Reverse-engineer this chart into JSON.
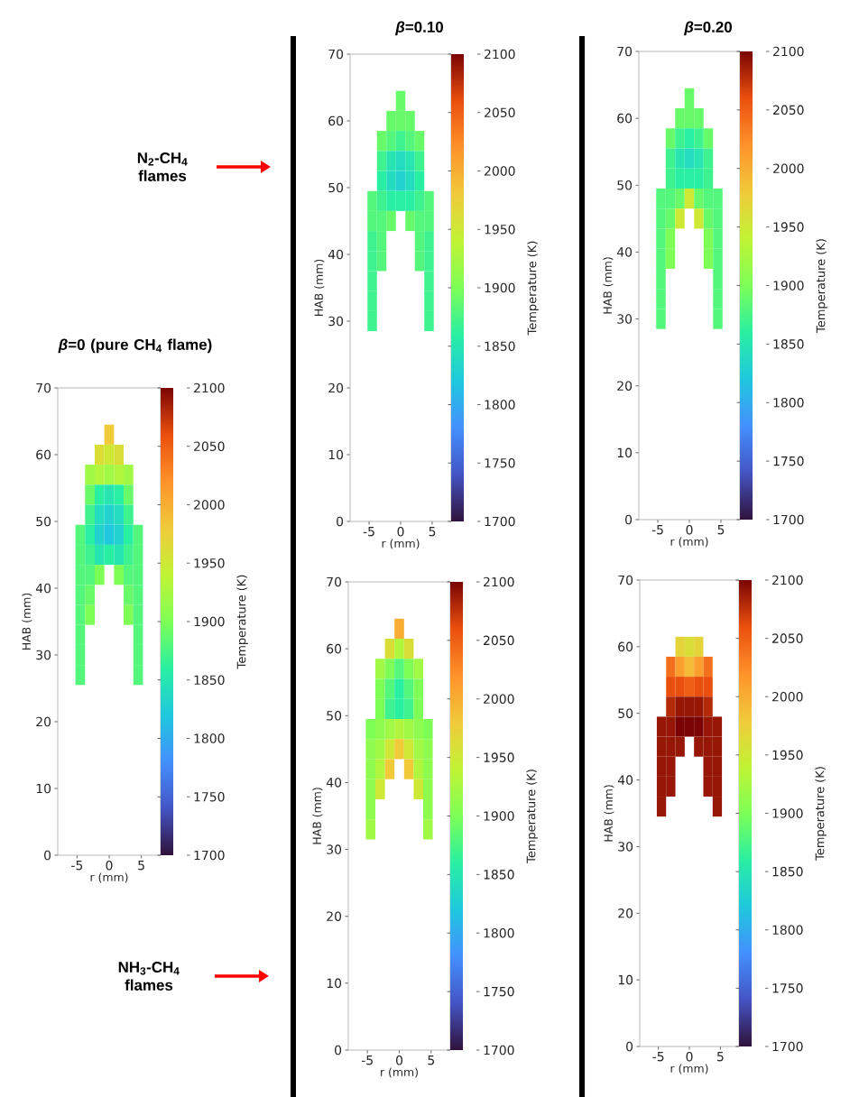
{
  "chart_data": [
    {
      "type": "heatmap",
      "title": "*β*=0 (pure CH$_{4}$ flame)",
      "xlabel": "r (mm)",
      "ylabel": "HAB (mm)",
      "clabel": "Temperature (K)",
      "x": [
        -4.5,
        -3,
        -1.5,
        0,
        1.5,
        3,
        4.5
      ],
      "y": [
        63,
        60,
        57,
        54,
        51,
        48,
        45,
        42,
        39,
        36,
        33,
        30,
        27
      ],
      "cells": [
        [
          null,
          null,
          null,
          1980,
          null,
          null,
          null
        ],
        [
          null,
          null,
          1960,
          1950,
          1960,
          null,
          null
        ],
        [
          null,
          1920,
          1930,
          1920,
          1930,
          1920,
          null
        ],
        [
          null,
          1890,
          1860,
          1850,
          1860,
          1890,
          null
        ],
        [
          null,
          1870,
          1840,
          1830,
          1840,
          1870,
          null
        ],
        [
          1880,
          1860,
          1830,
          1820,
          1830,
          1860,
          1880
        ],
        [
          1880,
          1870,
          1850,
          1860,
          1850,
          1870,
          1880
        ],
        [
          1880,
          1880,
          1900,
          null,
          1900,
          1880,
          1880
        ],
        [
          1880,
          1890,
          null,
          null,
          null,
          1890,
          1880
        ],
        [
          1880,
          1900,
          null,
          null,
          null,
          1900,
          1880
        ],
        [
          1880,
          null,
          null,
          null,
          null,
          null,
          1880
        ],
        [
          1880,
          null,
          null,
          null,
          null,
          null,
          1880
        ],
        [
          1880,
          null,
          null,
          null,
          null,
          null,
          1880
        ]
      ],
      "xlim": [
        -8,
        8
      ],
      "ylim": [
        0,
        70
      ],
      "xticks": [
        -5,
        0,
        5
      ],
      "yticks": [
        0,
        10,
        20,
        30,
        40,
        50,
        60,
        70
      ],
      "clim": [
        1700,
        2100
      ],
      "cticks": [
        1700,
        1750,
        1800,
        1850,
        1900,
        1950,
        2000,
        2050,
        2100
      ]
    },
    {
      "type": "heatmap",
      "title": "*β*=0.10",
      "xlabel": "r (mm)",
      "ylabel": "HAB (mm)",
      "clabel": "Temperature (K)",
      "annotations": [
        "N$_{2}$-CH$_{4}$ flames"
      ],
      "x": [
        -4.5,
        -3,
        -1.5,
        0,
        1.5,
        3,
        4.5
      ],
      "y": [
        63,
        60,
        57,
        54,
        51,
        48,
        45,
        42,
        39,
        36,
        33,
        30
      ],
      "cells": [
        [
          null,
          null,
          null,
          1890,
          null,
          null,
          null
        ],
        [
          null,
          null,
          1890,
          1890,
          1890,
          null,
          null
        ],
        [
          null,
          1890,
          1880,
          1870,
          1880,
          1890,
          null
        ],
        [
          null,
          1870,
          1850,
          1840,
          1850,
          1870,
          null
        ],
        [
          null,
          1860,
          1840,
          1830,
          1840,
          1860,
          null
        ],
        [
          1880,
          1870,
          1860,
          1860,
          1860,
          1870,
          1880
        ],
        [
          1880,
          1880,
          1890,
          null,
          1890,
          1880,
          1880
        ],
        [
          1870,
          1880,
          null,
          null,
          null,
          1880,
          1870
        ],
        [
          1870,
          1880,
          null,
          null,
          null,
          1880,
          1870
        ],
        [
          1870,
          null,
          null,
          null,
          null,
          null,
          1870
        ],
        [
          1870,
          null,
          null,
          null,
          null,
          null,
          1870
        ],
        [
          1870,
          null,
          null,
          null,
          null,
          null,
          1870
        ]
      ],
      "xlim": [
        -8,
        8
      ],
      "ylim": [
        0,
        70
      ],
      "xticks": [
        -5,
        0,
        5
      ],
      "yticks": [
        0,
        10,
        20,
        30,
        40,
        50,
        60,
        70
      ],
      "clim": [
        1700,
        2100
      ],
      "cticks": [
        1700,
        1750,
        1800,
        1850,
        1900,
        1950,
        2000,
        2050,
        2100
      ]
    },
    {
      "type": "heatmap",
      "title": "*β*=0.20",
      "xlabel": "r (mm)",
      "ylabel": "HAB (mm)",
      "clabel": "Temperature (K)",
      "x": [
        -4.5,
        -3,
        -1.5,
        0,
        1.5,
        3,
        4.5
      ],
      "y": [
        63,
        60,
        57,
        54,
        51,
        48,
        45,
        42,
        39,
        36,
        33,
        30
      ],
      "cells": [
        [
          null,
          null,
          null,
          1890,
          null,
          null,
          null
        ],
        [
          null,
          null,
          1890,
          1890,
          1890,
          null,
          null
        ],
        [
          null,
          1890,
          1870,
          1860,
          1870,
          1890,
          null
        ],
        [
          null,
          1870,
          1850,
          1840,
          1850,
          1870,
          null
        ],
        [
          null,
          1870,
          1860,
          1860,
          1860,
          1870,
          null
        ],
        [
          1880,
          1880,
          1890,
          1950,
          1890,
          1880,
          1880
        ],
        [
          1880,
          1890,
          1950,
          null,
          1950,
          1890,
          1880
        ],
        [
          1880,
          1900,
          null,
          null,
          null,
          1900,
          1880
        ],
        [
          1880,
          1900,
          null,
          null,
          null,
          1900,
          1880
        ],
        [
          1880,
          null,
          null,
          null,
          null,
          null,
          1880
        ],
        [
          1880,
          null,
          null,
          null,
          null,
          null,
          1880
        ],
        [
          1880,
          null,
          null,
          null,
          null,
          null,
          1880
        ]
      ],
      "xlim": [
        -8,
        8
      ],
      "ylim": [
        0,
        70
      ],
      "xticks": [
        -5,
        0,
        5
      ],
      "yticks": [
        0,
        10,
        20,
        30,
        40,
        50,
        60,
        70
      ],
      "clim": [
        1700,
        2100
      ],
      "cticks": [
        1700,
        1750,
        1800,
        1850,
        1900,
        1950,
        2000,
        2050,
        2100
      ]
    },
    {
      "type": "heatmap",
      "xlabel": "r (mm)",
      "ylabel": "HAB (mm)",
      "clabel": "Temperature (K)",
      "annotations": [
        "NH$_{3}$-CH$_{4}$ flames"
      ],
      "x": [
        -4.5,
        -3,
        -1.5,
        0,
        1.5,
        3,
        4.5
      ],
      "y": [
        63,
        60,
        57,
        54,
        51,
        48,
        45,
        42,
        39,
        36,
        33
      ],
      "cells": [
        [
          null,
          null,
          null,
          2000,
          null,
          null,
          null
        ],
        [
          null,
          null,
          1960,
          1930,
          1960,
          null,
          null
        ],
        [
          null,
          1920,
          1900,
          1880,
          1900,
          1920,
          null
        ],
        [
          null,
          1900,
          1880,
          1860,
          1880,
          1900,
          null
        ],
        [
          null,
          1900,
          1870,
          1860,
          1870,
          1900,
          null
        ],
        [
          1900,
          1910,
          1920,
          1930,
          1920,
          1910,
          1900
        ],
        [
          1910,
          1920,
          1950,
          1980,
          1950,
          1920,
          1910
        ],
        [
          1910,
          1930,
          1980,
          null,
          1980,
          1930,
          1910
        ],
        [
          1910,
          1950,
          null,
          null,
          null,
          1950,
          1910
        ],
        [
          1910,
          null,
          null,
          null,
          null,
          null,
          1910
        ],
        [
          1920,
          null,
          null,
          null,
          null,
          null,
          1920
        ]
      ],
      "xlim": [
        -8,
        8
      ],
      "ylim": [
        0,
        70
      ],
      "xticks": [
        -5,
        0,
        5
      ],
      "yticks": [
        0,
        10,
        20,
        30,
        40,
        50,
        60,
        70
      ],
      "clim": [
        1700,
        2100
      ],
      "cticks": [
        1700,
        1750,
        1800,
        1850,
        1900,
        1950,
        2000,
        2050,
        2100
      ]
    },
    {
      "type": "heatmap",
      "xlabel": "r (mm)",
      "ylabel": "HAB (mm)",
      "clabel": "Temperature (K)",
      "x": [
        -4.5,
        -3,
        -1.5,
        0,
        1.5,
        3,
        4.5
      ],
      "y": [
        60,
        57,
        54,
        51,
        48,
        45,
        42,
        39,
        36
      ],
      "cells": [
        [
          null,
          null,
          1970,
          1960,
          1970,
          null,
          null
        ],
        [
          null,
          2040,
          2010,
          1990,
          2010,
          2040,
          null
        ],
        [
          null,
          2060,
          2060,
          2050,
          2060,
          2060,
          null
        ],
        [
          null,
          2080,
          2090,
          2090,
          2090,
          2080,
          null
        ],
        [
          2090,
          2090,
          2100,
          2100,
          2100,
          2090,
          2090
        ],
        [
          2090,
          2090,
          2090,
          null,
          2090,
          2090,
          2090
        ],
        [
          2090,
          2090,
          null,
          null,
          null,
          2090,
          2090
        ],
        [
          2090,
          2090,
          null,
          null,
          null,
          2090,
          2090
        ],
        [
          2090,
          null,
          null,
          null,
          null,
          null,
          2090
        ]
      ],
      "xlim": [
        -8,
        8
      ],
      "ylim": [
        0,
        70
      ],
      "xticks": [
        -5,
        0,
        5
      ],
      "yticks": [
        0,
        10,
        20,
        30,
        40,
        50,
        60,
        70
      ],
      "clim": [
        1700,
        2100
      ],
      "cticks": [
        1700,
        1750,
        1800,
        1850,
        1900,
        1950,
        2000,
        2050,
        2100
      ]
    }
  ]
}
